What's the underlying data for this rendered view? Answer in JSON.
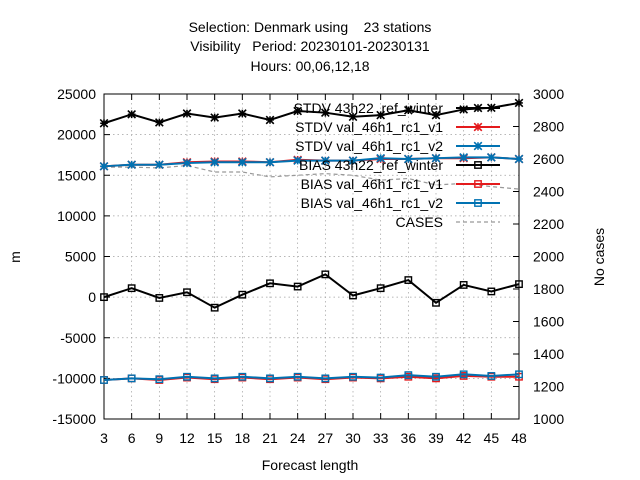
{
  "chart_data": {
    "type": "line",
    "title_lines": [
      "Selection: Denmark using    23 stations",
      "Visibility   Period: 20230101-20230131",
      "Hours: 00,06,12,18"
    ],
    "xlabel": "Forecast length",
    "ylabel": "m",
    "y2label": "No cases",
    "x": [
      3,
      6,
      9,
      12,
      15,
      18,
      21,
      24,
      27,
      30,
      33,
      36,
      39,
      42,
      45,
      48
    ],
    "xlim": [
      3,
      48
    ],
    "ylim": [
      -15000,
      25000
    ],
    "y2lim": [
      1000,
      3000
    ],
    "x_ticks": [
      "3",
      "6",
      "9",
      "12",
      "15",
      "18",
      "21",
      "24",
      "27",
      "30",
      "33",
      "36",
      "39",
      "42",
      "45",
      "48"
    ],
    "y_ticks": [
      "-15000",
      "-10000",
      "-5000",
      "0",
      "5000",
      "10000",
      "15000",
      "20000",
      "25000"
    ],
    "y2_ticks": [
      "1000",
      "1200",
      "1400",
      "1600",
      "1800",
      "2000",
      "2200",
      "2400",
      "2600",
      "2800",
      "3000"
    ],
    "grid": true,
    "legend_position": "top-right",
    "series": [
      {
        "name": "STDV 43h22_ref_winter",
        "color": "#000000",
        "marker": "star",
        "axis": "y",
        "values": [
          21400,
          22500,
          21500,
          22600,
          22100,
          22600,
          21800,
          22900,
          22700,
          22200,
          22400,
          23000,
          22400,
          23100,
          23300,
          23900
        ]
      },
      {
        "name": "STDV val_46h1_rc1_v1",
        "color": "#e41a1c",
        "marker": "star",
        "axis": "y",
        "values": [
          16100,
          16300,
          16300,
          16600,
          16700,
          16700,
          16600,
          16900,
          16800,
          16800,
          17000,
          17000,
          17100,
          17100,
          17200,
          17000
        ]
      },
      {
        "name": "STDV val_46h1_rc1_v2",
        "color": "#0072b2",
        "marker": "star",
        "axis": "y",
        "values": [
          16100,
          16300,
          16300,
          16500,
          16600,
          16600,
          16600,
          16800,
          16800,
          16800,
          17100,
          17000,
          17100,
          17200,
          17200,
          17000
        ]
      },
      {
        "name": "BIAS 43h22_ref_winter",
        "color": "#000000",
        "marker": "square",
        "axis": "y",
        "values": [
          0,
          1100,
          -100,
          600,
          -1300,
          300,
          1700,
          1300,
          2800,
          200,
          1100,
          2100,
          -700,
          1500,
          700,
          1600
        ]
      },
      {
        "name": "BIAS val_46h1_rc1_v1",
        "color": "#e41a1c",
        "marker": "square",
        "axis": "y",
        "values": [
          -10200,
          -10000,
          -10200,
          -9900,
          -10100,
          -9900,
          -10100,
          -9900,
          -10100,
          -9900,
          -10000,
          -9800,
          -10000,
          -9700,
          -9800,
          -9800
        ]
      },
      {
        "name": "BIAS val_46h1_rc1_v2",
        "color": "#0072b2",
        "marker": "square",
        "axis": "y",
        "values": [
          -10200,
          -10000,
          -10100,
          -9800,
          -10000,
          -9800,
          -10000,
          -9800,
          -10000,
          -9800,
          -9900,
          -9600,
          -9800,
          -9500,
          -9700,
          -9500
        ]
      },
      {
        "name": "CASES",
        "color": "#999999",
        "marker": "none",
        "dashed": true,
        "axis": "y2",
        "values": [
          2550,
          2550,
          2545,
          2560,
          2520,
          2520,
          2490,
          2500,
          2510,
          2500,
          2470,
          2480,
          2440,
          2450,
          2430,
          2415
        ]
      }
    ]
  }
}
